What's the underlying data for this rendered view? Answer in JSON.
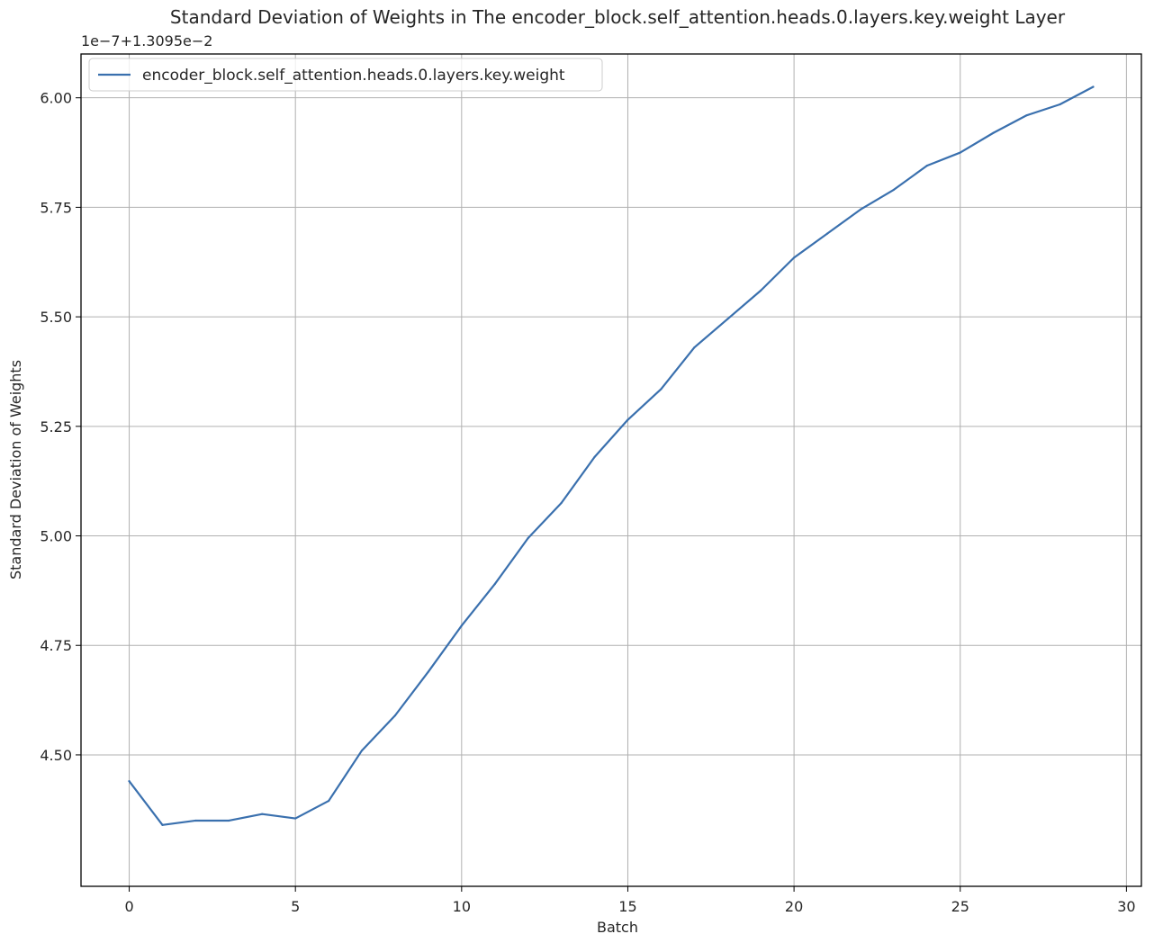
{
  "chart_data": {
    "type": "line",
    "title": "Standard Deviation of Weights in The encoder_block.self_attention.heads.0.layers.key.weight Layer",
    "xlabel": "Batch",
    "ylabel": "Standard Deviation of Weights",
    "y_offset_text": "1e−7+1.3095e−2",
    "xlim": [
      -1.45,
      30.45
    ],
    "ylim": [
      4.2,
      6.1
    ],
    "x_ticks": [
      0,
      5,
      10,
      15,
      20,
      25,
      30
    ],
    "x_tick_labels": [
      "0",
      "5",
      "10",
      "15",
      "20",
      "25",
      "30"
    ],
    "y_ticks": [
      4.5,
      4.75,
      5.0,
      5.25,
      5.5,
      5.75,
      6.0
    ],
    "y_tick_labels": [
      "4.50",
      "4.75",
      "5.00",
      "5.25",
      "5.50",
      "5.75",
      "6.00"
    ],
    "grid": true,
    "legend_position": "upper-left",
    "series": [
      {
        "name": "encoder_block.self_attention.heads.0.layers.key.weight",
        "color": "#3a70ae",
        "x": [
          0,
          1,
          2,
          3,
          4,
          5,
          6,
          7,
          8,
          9,
          10,
          11,
          12,
          13,
          14,
          15,
          16,
          17,
          18,
          19,
          20,
          21,
          22,
          23,
          24,
          25,
          26,
          27,
          28,
          29
        ],
        "values": [
          4.44,
          4.34,
          4.35,
          4.35,
          4.365,
          4.355,
          4.395,
          4.51,
          4.59,
          4.69,
          4.795,
          4.89,
          4.995,
          5.075,
          5.18,
          5.265,
          5.335,
          5.43,
          5.495,
          5.56,
          5.635,
          5.69,
          5.745,
          5.79,
          5.845,
          5.875,
          5.92,
          5.96,
          5.985,
          6.025
        ]
      }
    ]
  }
}
